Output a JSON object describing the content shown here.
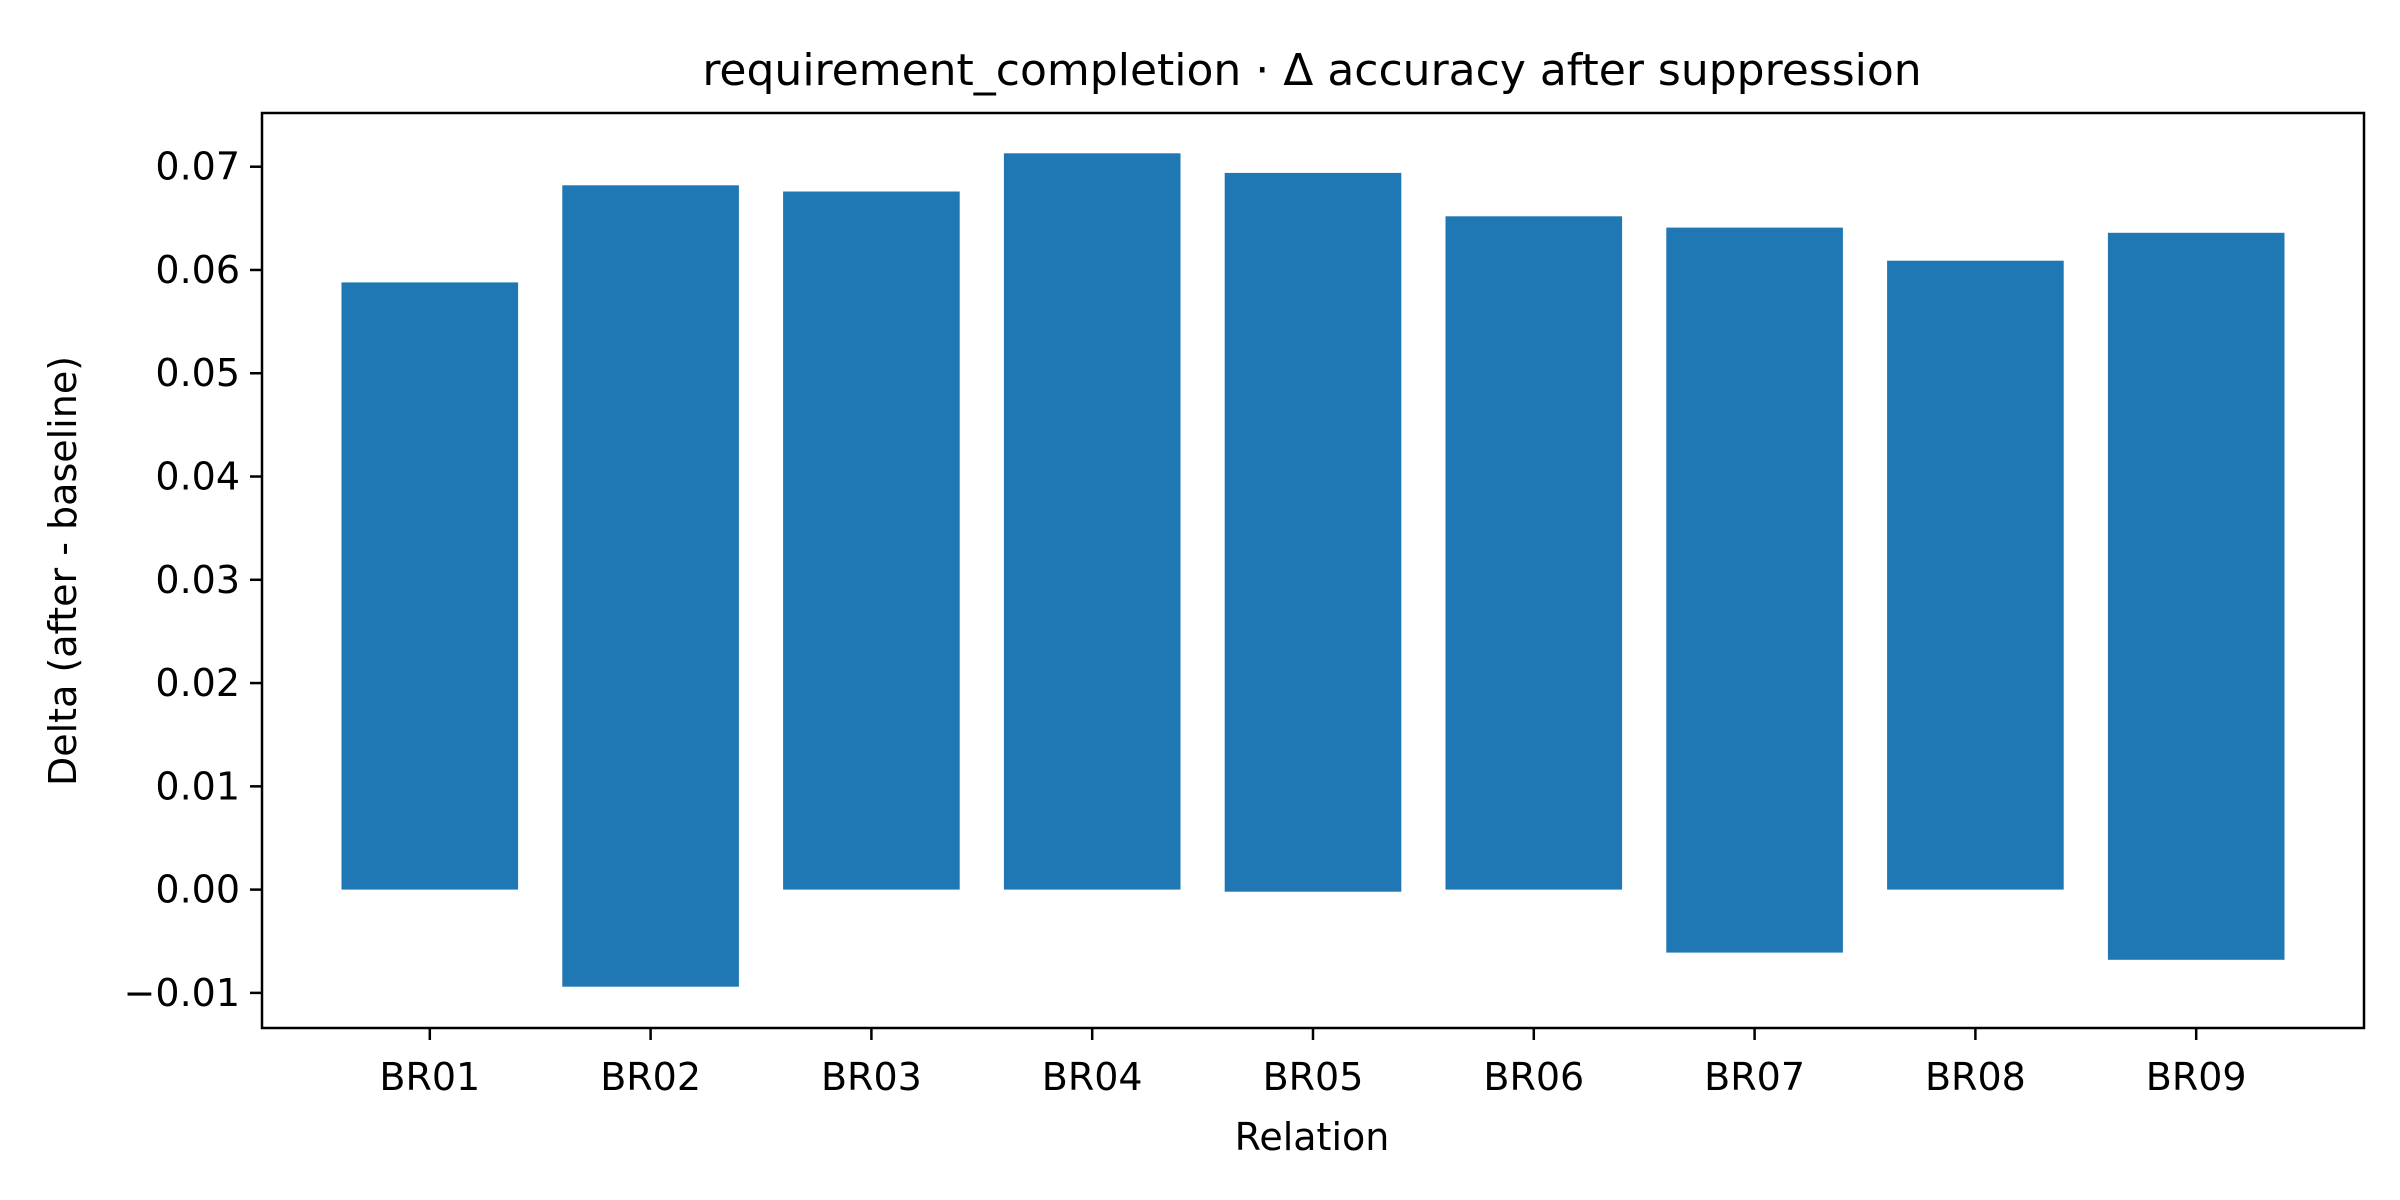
{
  "chart_data": {
    "type": "bar",
    "title": "requirement_completion · Δ accuracy after suppression",
    "xlabel": "Relation",
    "ylabel": "Delta (after - baseline)",
    "categories": [
      "BR01",
      "BR02",
      "BR03",
      "BR04",
      "BR05",
      "BR06",
      "BR07",
      "BR08",
      "BR09"
    ],
    "series": [
      {
        "bars": [
          {
            "bottom": 0.0,
            "top": 0.0588
          },
          {
            "bottom": -0.0094,
            "top": 0.0682
          },
          {
            "bottom": 0.0,
            "top": 0.0676
          },
          {
            "bottom": 0.0,
            "top": 0.0713
          },
          {
            "bottom": -0.0002,
            "top": 0.0694
          },
          {
            "bottom": 0.0,
            "top": 0.0652
          },
          {
            "bottom": -0.0061,
            "top": 0.0641
          },
          {
            "bottom": 0.0,
            "top": 0.0609
          },
          {
            "bottom": -0.0068,
            "top": 0.0636
          }
        ]
      }
    ],
    "ylim": [
      -0.0134,
      0.0752
    ],
    "yticks": [
      -0.01,
      0.0,
      0.01,
      0.02,
      0.03,
      0.04,
      0.05,
      0.06,
      0.07
    ],
    "ytick_labels": [
      "−0.01",
      "0.00",
      "0.01",
      "0.02",
      "0.03",
      "0.04",
      "0.05",
      "0.06",
      "0.07"
    ],
    "grid": false,
    "legend": "none",
    "bar_color": "#1f77b4"
  }
}
